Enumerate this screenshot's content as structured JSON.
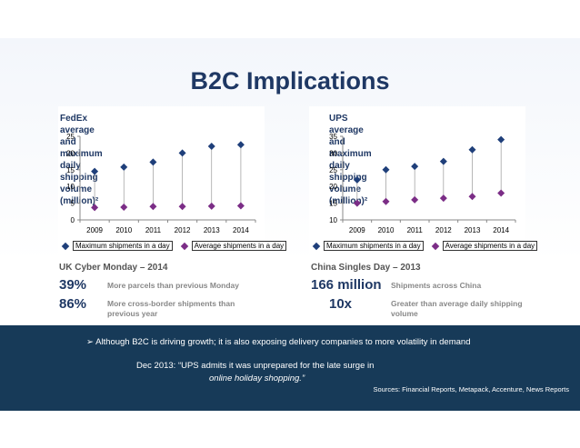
{
  "slide": {
    "title": "B2C Implications"
  },
  "chart_data": [
    {
      "type": "scatter",
      "title_line1": "FedEx average and maximum daily shipping",
      "title_line2": "volume (million)²",
      "categories": [
        "2009",
        "2010",
        "2011",
        "2012",
        "2013",
        "2014"
      ],
      "series": [
        {
          "name": "Maximum shipments in a day",
          "values": [
            14.5,
            15.8,
            17.3,
            20,
            22,
            22.5
          ]
        },
        {
          "name": "Average shipments in a day",
          "values": [
            3.7,
            3.8,
            4,
            4,
            4.1,
            4.2
          ]
        }
      ],
      "ylim": [
        0,
        25
      ],
      "yticks": [
        0,
        5,
        10,
        15,
        20,
        25
      ],
      "drop_lines": true,
      "legend": "bottom"
    },
    {
      "type": "scatter",
      "title_line1": "UPS average and maximum daily shipping",
      "title_line2": "volume (million)²",
      "categories": [
        "2009",
        "2010",
        "2011",
        "2012",
        "2013",
        "2014"
      ],
      "series": [
        {
          "name": "Maximum shipments in a day",
          "values": [
            22,
            25,
            26,
            27.5,
            31,
            34
          ]
        },
        {
          "name": "Average shipments in a day",
          "values": [
            15,
            15.5,
            16,
            16.5,
            17,
            18
          ]
        }
      ],
      "ylim": [
        10,
        35
      ],
      "yticks": [
        10,
        15,
        20,
        25,
        30,
        35
      ],
      "drop_lines": true,
      "legend": "bottom"
    }
  ],
  "colors": {
    "max": "#1f3f7a",
    "avg": "#7b2d86",
    "title": "#1f3864",
    "band": "#173a58"
  },
  "uk": {
    "heading": "UK Cyber Monday – 2014",
    "stat1_value": "39%",
    "stat1_text": "More parcels than previous Monday",
    "stat2_value": "86%",
    "stat2_text_line1": "More cross-border shipments than",
    "stat2_text_line2": "previous year"
  },
  "china": {
    "heading": "China Singles Day – 2013",
    "stat1_value": "166 million",
    "stat1_text": "Shipments across China",
    "stat2_value": "10x",
    "stat2_text_line1": "Greater than average daily shipping",
    "stat2_text_line2": "volume"
  },
  "footer": {
    "bullet": "➢  Although B2C is driving growth; it is also exposing delivery companies to more volatility in demand",
    "quote_line1": "Dec 2013: “UPS admits it was unprepared for the late surge in",
    "quote_line2": "online holiday shopping.”",
    "sources": "Sources: Financial Reports, Metapack, Accenture, News Reports"
  }
}
